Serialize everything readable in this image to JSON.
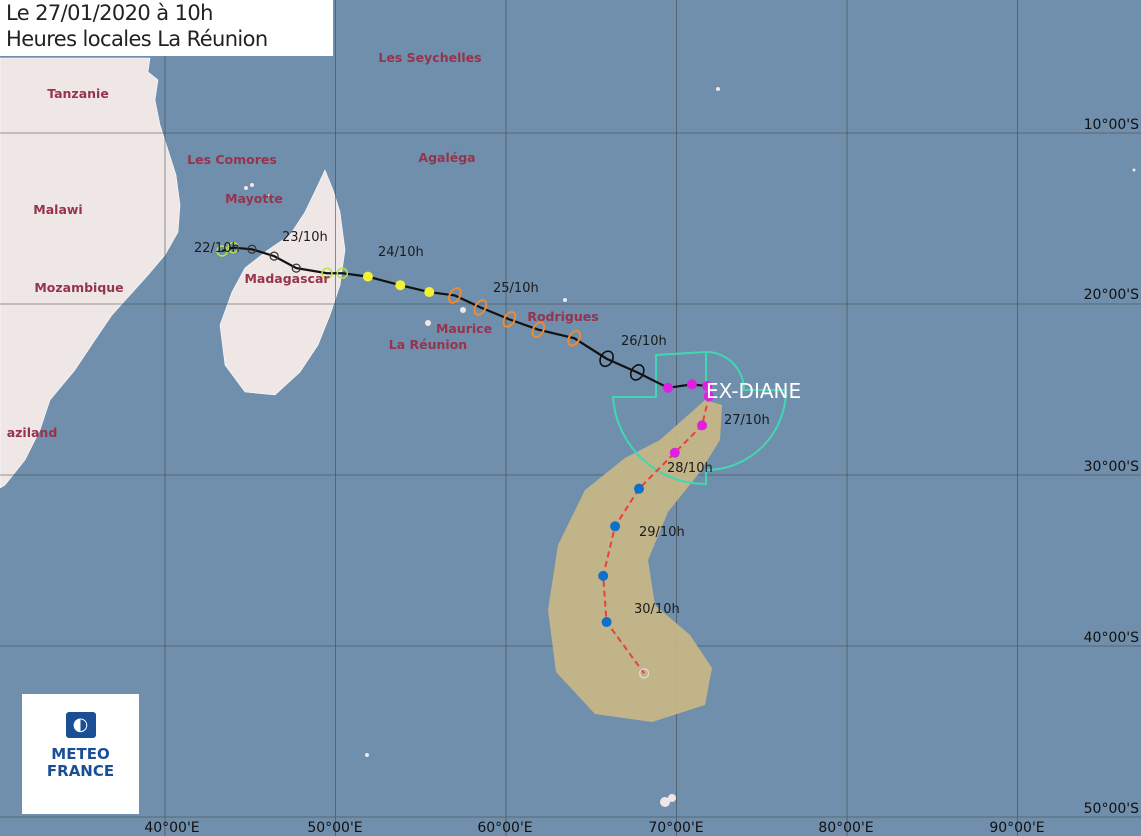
{
  "header": {
    "line1": "Le 27/01/2020 à 10h",
    "line2": "Heures locales La Réunion"
  },
  "logo": {
    "line1": "METEO",
    "line2": "FRANCE"
  },
  "storm_name": "EX-DIANE",
  "colors": {
    "ocean": "#6f8fac",
    "land": "#efe6e6",
    "place_label": "#96334d",
    "cone": "#c8b786",
    "wind_radii": "#40d8b0",
    "forecast_track": "#e8403a"
  },
  "longitude_labels": [
    "40°00'E",
    "50°00'E",
    "60°00'E",
    "70°00'E",
    "80°00'E",
    "90°00'E"
  ],
  "latitude_labels": [
    "10°00'S",
    "20°00'S",
    "30°00'S",
    "40°00'S",
    "50°00'S"
  ],
  "places": [
    {
      "name": "Les Seychelles"
    },
    {
      "name": "Tanzanie"
    },
    {
      "name": "Agaléga"
    },
    {
      "name": "Les Comores"
    },
    {
      "name": "Mayotte"
    },
    {
      "name": "Malawi"
    },
    {
      "name": "Mozambique"
    },
    {
      "name": "Madagascar"
    },
    {
      "name": "Rodrigues"
    },
    {
      "name": "Maurice"
    },
    {
      "name": "La Réunion"
    },
    {
      "name": "aziland"
    }
  ],
  "track_labels": [
    "22/10h",
    "23/10h",
    "24/10h",
    "25/10h",
    "26/10h",
    "27/10h",
    "28/10h",
    "29/10h",
    "30/10h"
  ],
  "past_track": [
    {
      "lon": 43.35,
      "lat": -16.9,
      "type": "depression-open"
    },
    {
      "lon": 44.0,
      "lat": -16.7,
      "type": "depression-open"
    },
    {
      "lon": 45.1,
      "lat": -16.8,
      "type": "low-open"
    },
    {
      "lon": 46.4,
      "lat": -17.2,
      "type": "low-open"
    },
    {
      "lon": 47.7,
      "lat": -17.9,
      "type": "low-open"
    },
    {
      "lon": 49.5,
      "lat": -18.2,
      "type": "depression-open"
    },
    {
      "lon": 50.4,
      "lat": -18.2,
      "type": "depression-open"
    },
    {
      "lon": 51.9,
      "lat": -18.4,
      "type": "moderate-storm"
    },
    {
      "lon": 53.8,
      "lat": -18.9,
      "type": "moderate-storm"
    },
    {
      "lon": 55.5,
      "lat": -19.3,
      "type": "moderate-storm"
    },
    {
      "lon": 57.0,
      "lat": -19.5,
      "type": "severe-storm"
    },
    {
      "lon": 58.5,
      "lat": -20.2,
      "type": "severe-storm"
    },
    {
      "lon": 60.2,
      "lat": -20.9,
      "type": "severe-storm"
    },
    {
      "lon": 61.9,
      "lat": -21.5,
      "type": "severe-storm"
    },
    {
      "lon": 64.0,
      "lat": -22.0,
      "type": "severe-storm"
    },
    {
      "lon": 65.9,
      "lat": -23.2,
      "type": "post-tropical"
    },
    {
      "lon": 67.7,
      "lat": -24.0,
      "type": "post-tropical"
    },
    {
      "lon": 69.5,
      "lat": -24.9,
      "type": "extratropical"
    },
    {
      "lon": 70.9,
      "lat": -24.7,
      "type": "extratropical"
    },
    {
      "lon": 71.8,
      "lat": -24.8,
      "type": "extratropical"
    }
  ],
  "forecast_track": [
    {
      "lon": 71.8,
      "lat": -24.8,
      "type": "none"
    },
    {
      "lon": 71.9,
      "lat": -25.4,
      "type": "extratropical"
    },
    {
      "lon": 71.5,
      "lat": -27.1,
      "type": "extratropical"
    },
    {
      "lon": 69.9,
      "lat": -28.7,
      "type": "extratropical"
    },
    {
      "lon": 67.8,
      "lat": -30.8,
      "type": "residual"
    },
    {
      "lon": 66.4,
      "lat": -33.0,
      "type": "residual"
    },
    {
      "lon": 65.7,
      "lat": -35.9,
      "type": "residual"
    },
    {
      "lon": 65.9,
      "lat": -38.6,
      "type": "residual"
    },
    {
      "lon": 68.1,
      "lat": -41.6,
      "type": "end-open"
    }
  ]
}
